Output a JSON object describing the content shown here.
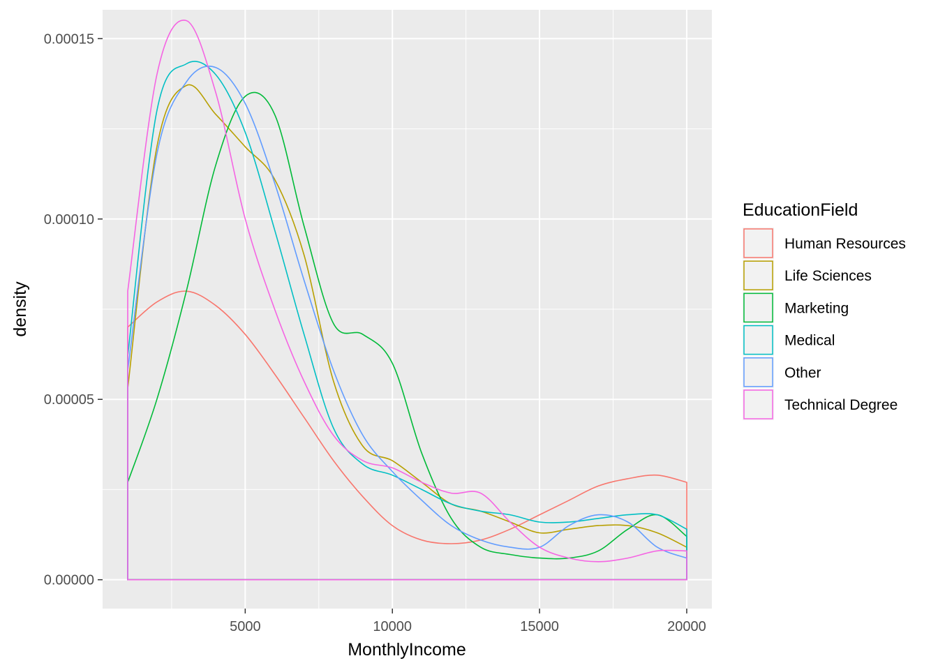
{
  "chart_data": {
    "type": "line",
    "geom": "density",
    "xlabel": "MonthlyIncome",
    "ylabel": "density",
    "xlim": [
      1009,
      20000
    ],
    "ylim": [
      -8e-06,
      0.000158
    ],
    "x_ticks": [
      5000,
      10000,
      15000,
      20000
    ],
    "x_tick_labels": [
      "5000",
      "10000",
      "15000",
      "20000"
    ],
    "y_ticks": [
      0,
      5e-05,
      0.0001,
      0.00015
    ],
    "y_tick_labels": [
      "0.00000",
      "0.00005",
      "0.00010",
      "0.00015"
    ],
    "x_minor_ticks": [
      2500,
      7500,
      12500,
      17500
    ],
    "y_minor_ticks": [
      2.5e-05,
      7.5e-05,
      0.000125
    ],
    "grid": true,
    "background": "#EBEBEB",
    "legend": {
      "title": "EducationField",
      "position": "right"
    },
    "x": [
      1009,
      2000,
      3000,
      4000,
      5000,
      6000,
      7000,
      8000,
      9000,
      10000,
      11000,
      12000,
      13000,
      14000,
      15000,
      16000,
      17000,
      18000,
      19000,
      20000
    ],
    "series": [
      {
        "name": "Human Resources",
        "color": "#F8766D",
        "values": [
          7e-05,
          7.7e-05,
          8e-05,
          7.6e-05,
          6.8e-05,
          5.7e-05,
          4.5e-05,
          3.3e-05,
          2.3e-05,
          1.5e-05,
          1.1e-05,
          1e-05,
          1.1e-05,
          1.4e-05,
          1.8e-05,
          2.2e-05,
          2.6e-05,
          2.8e-05,
          2.9e-05,
          2.7e-05
        ]
      },
      {
        "name": "Life Sciences",
        "color": "#B79F00",
        "values": [
          5.3e-05,
          0.00012,
          0.000137,
          0.000129,
          0.00012,
          0.000111,
          9e-05,
          5.5e-05,
          3.7e-05,
          3.3e-05,
          2.7e-05,
          2.1e-05,
          1.9e-05,
          1.6e-05,
          1.3e-05,
          1.4e-05,
          1.5e-05,
          1.5e-05,
          1.3e-05,
          9e-06
        ]
      },
      {
        "name": "Marketing",
        "color": "#00BA38",
        "values": [
          2.7e-05,
          5e-05,
          8e-05,
          0.000115,
          0.000134,
          0.000129,
          9.8e-05,
          7.1e-05,
          6.8e-05,
          6e-05,
          3.5e-05,
          1.7e-05,
          9e-06,
          7e-06,
          6e-06,
          6e-06,
          8e-06,
          1.4e-05,
          1.8e-05,
          1.2e-05
        ]
      },
      {
        "name": "Medical",
        "color": "#00BFC4",
        "values": [
          6.2e-05,
          0.00013,
          0.000143,
          0.00014,
          0.000124,
          9.7e-05,
          6.8e-05,
          4.2e-05,
          3.2e-05,
          2.9e-05,
          2.5e-05,
          2.1e-05,
          1.9e-05,
          1.8e-05,
          1.6e-05,
          1.6e-05,
          1.7e-05,
          1.8e-05,
          1.8e-05,
          1.4e-05
        ]
      },
      {
        "name": "Other",
        "color": "#619CFF",
        "values": [
          5.8e-05,
          0.000118,
          0.000138,
          0.000142,
          0.000132,
          0.00011,
          8.3e-05,
          5.8e-05,
          4e-05,
          3e-05,
          2.2e-05,
          1.5e-05,
          1.1e-05,
          9e-06,
          9e-06,
          1.5e-05,
          1.8e-05,
          1.6e-05,
          9e-06,
          6e-06
        ]
      },
      {
        "name": "Technical Degree",
        "color": "#F564E3",
        "values": [
          8e-05,
          0.00014,
          0.000155,
          0.000135,
          0.0001,
          7.5e-05,
          5.5e-05,
          4e-05,
          3.3e-05,
          3.1e-05,
          2.7e-05,
          2.4e-05,
          2.4e-05,
          1.6e-05,
          9e-06,
          6e-06,
          5e-06,
          6e-06,
          8e-06,
          8e-06
        ]
      }
    ]
  }
}
